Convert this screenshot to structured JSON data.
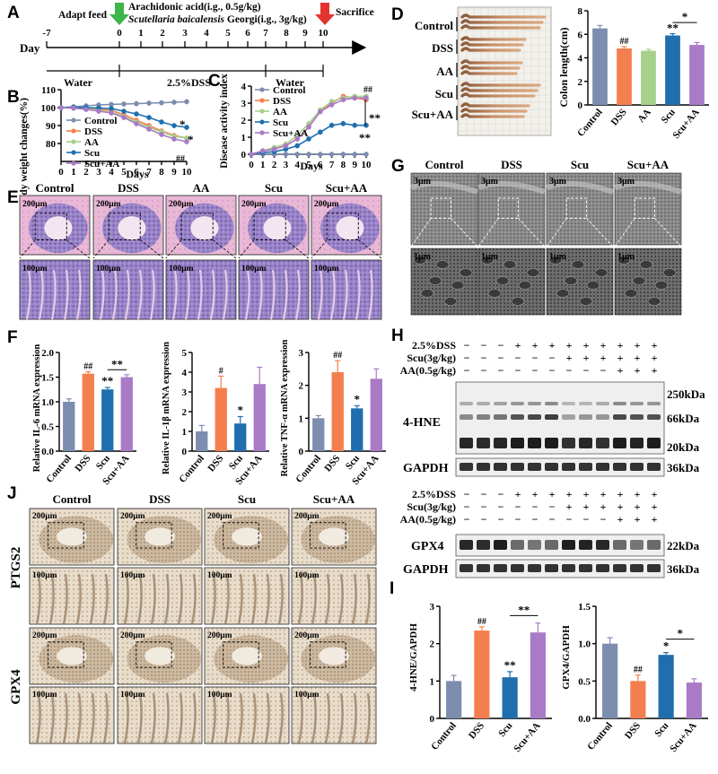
{
  "colors": {
    "control": "#7D8DAF",
    "dss": "#F47F4E",
    "aa": "#A6D08C",
    "scu": "#1F6FAE",
    "scu_aa": "#A97BC7",
    "ink": "#000000"
  },
  "panelA": {
    "letter": "A",
    "day_label": "Day",
    "days": [
      "-7",
      "0",
      "1",
      "2",
      "3",
      "4",
      "5",
      "6",
      "7",
      "8",
      "9",
      "10"
    ],
    "adapt": "Adapt feed",
    "arach": "Arachidonic acid(i.g., 0.5g/kg)",
    "scut_italic": "Scutellaria baicalensis",
    "scut_rest": " Georgi(i.g., 3g/kg)",
    "sacrifice": "Sacrifice",
    "water1": "Water",
    "dss": "2.5%DSS",
    "water2": "Water"
  },
  "panelB": {
    "letter": "B",
    "ylabel": "Body weight changes(%)",
    "xlabel": "Days",
    "sig_star1": "*",
    "sig_star2": "*",
    "sig_hash": "##"
  },
  "panelC": {
    "letter": "C",
    "ylabel": "Disease activity index",
    "xlabel": "Days",
    "sig_hash": "##",
    "sig_dstar1": "**",
    "sig_dstar2": "**"
  },
  "panelD": {
    "letter": "D",
    "groups": [
      "Control",
      "DSS",
      "AA",
      "Scu",
      "Scu+AA"
    ],
    "ylabel": "Colon length(cm)",
    "sig_hash": "##",
    "sig_dstar": "**",
    "sig_star": "*"
  },
  "panelE": {
    "letter": "E",
    "groups": [
      "Control",
      "DSS",
      "AA",
      "Scu",
      "Scu+AA"
    ],
    "scale_top": "200μm",
    "scale_bottom": "100μm"
  },
  "panelF": {
    "letter": "F",
    "il6_label": "Relative IL-6 mRNA expression",
    "il1b_label": "Relative IL-1β mRNA expression",
    "tnf_label": "Relative TNF-α mRNA expression",
    "groups": [
      "Control",
      "DSS",
      "Scu",
      "Scu+AA"
    ],
    "il6_sig": [
      "",
      "##",
      "**",
      ""
    ],
    "il6_bracket": "**",
    "il1b_sig": [
      "",
      "#",
      "*",
      ""
    ],
    "tnf_sig": [
      "",
      "##",
      "*",
      ""
    ]
  },
  "panelG": {
    "letter": "G",
    "groups": [
      "Control",
      "DSS",
      "Scu",
      "Scu+AA"
    ],
    "scale_top": "3μm",
    "scale_bottom": "1μm"
  },
  "panelH": {
    "letter": "H",
    "row_labels": [
      "2.5%DSS",
      "Scu(3g/kg)",
      "AA(0.5g/kg)"
    ],
    "row_signs": [
      [
        "−",
        "−",
        "−",
        "+",
        "+",
        "+",
        "+",
        "+",
        "+",
        "+",
        "+",
        "+"
      ],
      [
        "−",
        "−",
        "−",
        "−",
        "−",
        "−",
        "+",
        "+",
        "+",
        "+",
        "+",
        "+"
      ],
      [
        "−",
        "−",
        "−",
        "−",
        "−",
        "−",
        "−",
        "−",
        "−",
        "+",
        "+",
        "+"
      ]
    ],
    "blot1_label": "4-HNE",
    "gapdh_label": "GAPDH",
    "kda_250": "250kDa",
    "kda_66": "66kDa",
    "kda_20": "20kDa",
    "kda_36": "36kDa",
    "blot2_label": "GPX4",
    "kda_22": "22kDa"
  },
  "panelI": {
    "letter": "I",
    "groups": [
      "Control",
      "DSS",
      "Scu",
      "Scu+AA"
    ],
    "hne_label": "4-HNE/GAPDH",
    "gpx4_label": "GPX4/GAPDH",
    "hne_sig": [
      "",
      "##",
      "**",
      ""
    ],
    "hne_bracket": "**",
    "gpx4_sig": [
      "",
      "##",
      "*",
      ""
    ],
    "gpx4_bracket": "*"
  },
  "panelJ": {
    "letter": "J",
    "groups": [
      "Control",
      "DSS",
      "Scu",
      "Scu+AA"
    ],
    "rows": [
      "PTGS2",
      "GPX4"
    ],
    "scale_top": "200μm",
    "scale_bottom": "100μm"
  },
  "chart_data": [
    {
      "id": "B",
      "type": "line",
      "ylabel": "Body weight changes(%)",
      "xlabel": "Days",
      "x": [
        0,
        1,
        2,
        3,
        4,
        5,
        6,
        7,
        8,
        9,
        10
      ],
      "xlim": [
        0,
        10
      ],
      "ylim": [
        70,
        110
      ],
      "yticks": [
        80,
        90,
        100,
        110
      ],
      "legend": "left",
      "series": [
        {
          "name": "Control",
          "color_key": "control",
          "values": [
            100,
            100.5,
            101,
            101.5,
            101.8,
            102,
            102.2,
            102.5,
            102.7,
            103,
            103.3
          ]
        },
        {
          "name": "DSS",
          "color_key": "dss",
          "values": [
            100,
            100,
            99.5,
            99,
            98.5,
            96,
            93,
            90,
            87,
            84.5,
            83
          ]
        },
        {
          "name": "AA",
          "color_key": "aa",
          "values": [
            100,
            99.8,
            99.3,
            98.5,
            97.5,
            95,
            92,
            89,
            86.5,
            84,
            83
          ]
        },
        {
          "name": "Scu",
          "color_key": "scu",
          "values": [
            100,
            100.2,
            100,
            99.8,
            99.5,
            98,
            96.5,
            94.5,
            92,
            90,
            89
          ]
        },
        {
          "name": "Scu+AA",
          "color_key": "scu_aa",
          "values": [
            100,
            99.7,
            99,
            98,
            97,
            94.5,
            91,
            88,
            85,
            82.5,
            81
          ]
        }
      ]
    },
    {
      "id": "C",
      "type": "line",
      "ylabel": "Disease activity index",
      "xlabel": "Days",
      "x": [
        0,
        1,
        2,
        3,
        4,
        5,
        6,
        7,
        8,
        9,
        10
      ],
      "xlim": [
        0,
        10
      ],
      "ylim": [
        0,
        4
      ],
      "yticks": [
        0,
        1,
        2,
        3,
        4
      ],
      "legend": "top-left",
      "series": [
        {
          "name": "Control",
          "color_key": "control",
          "values": [
            0,
            0,
            0,
            0,
            0,
            0,
            0,
            0,
            0,
            0,
            0
          ]
        },
        {
          "name": "DSS",
          "color_key": "dss",
          "values": [
            0,
            0.2,
            0.3,
            0.5,
            0.9,
            1.6,
            2.5,
            3.0,
            3.4,
            3.3,
            3.2
          ]
        },
        {
          "name": "AA",
          "color_key": "aa",
          "values": [
            0,
            0.2,
            0.4,
            0.6,
            1.1,
            1.8,
            2.6,
            3.1,
            3.3,
            3.4,
            3.4
          ]
        },
        {
          "name": "Scu",
          "color_key": "scu",
          "values": [
            0,
            0.1,
            0.15,
            0.3,
            0.5,
            0.9,
            1.3,
            1.7,
            1.8,
            1.7,
            1.7
          ]
        },
        {
          "name": "Scu+AA",
          "color_key": "scu_aa",
          "values": [
            0,
            0.2,
            0.3,
            0.5,
            0.9,
            1.6,
            2.5,
            2.9,
            3.2,
            3.3,
            3.3
          ]
        }
      ]
    },
    {
      "id": "D",
      "type": "bar",
      "ylabel": "Colon length(cm)",
      "categories": [
        "Control",
        "DSS",
        "AA",
        "Scu",
        "Scu+AA"
      ],
      "values": [
        6.5,
        4.8,
        4.6,
        5.9,
        5.1
      ],
      "errors": [
        0.25,
        0.15,
        0.12,
        0.15,
        0.2
      ],
      "ylim": [
        0,
        8
      ],
      "yticks": [
        0,
        2,
        4,
        6,
        8
      ]
    },
    {
      "id": "F1",
      "type": "bar",
      "ylabel": "Relative IL-6 mRNA expression",
      "categories": [
        "Control",
        "DSS",
        "Scu",
        "Scu+AA"
      ],
      "values": [
        1.0,
        1.57,
        1.25,
        1.5
      ],
      "errors": [
        0.06,
        0.04,
        0.04,
        0.05
      ],
      "ylim": [
        0,
        2.0
      ],
      "yticks": [
        0.0,
        0.5,
        1.0,
        1.5,
        2.0
      ]
    },
    {
      "id": "F2",
      "type": "bar",
      "ylabel": "Relative IL-1β mRNA expression",
      "categories": [
        "Control",
        "DSS",
        "Scu",
        "Scu+AA"
      ],
      "values": [
        1.0,
        3.2,
        1.4,
        3.4
      ],
      "errors": [
        0.3,
        0.6,
        0.35,
        0.85
      ],
      "ylim": [
        0,
        5
      ],
      "yticks": [
        0,
        1,
        2,
        3,
        4,
        5
      ]
    },
    {
      "id": "F3",
      "type": "bar",
      "ylabel": "Relative TNF-α mRNA expression",
      "categories": [
        "Control",
        "DSS",
        "Scu",
        "Scu+AA"
      ],
      "values": [
        1.0,
        2.4,
        1.3,
        2.2
      ],
      "errors": [
        0.08,
        0.35,
        0.08,
        0.3
      ],
      "ylim": [
        0,
        3
      ],
      "yticks": [
        0,
        1,
        2,
        3
      ]
    },
    {
      "id": "I1",
      "type": "bar",
      "ylabel": "4-HNE/GAPDH",
      "categories": [
        "Control",
        "DSS",
        "Scu",
        "Scu+AA"
      ],
      "values": [
        1.0,
        2.35,
        1.1,
        2.3
      ],
      "errors": [
        0.15,
        0.1,
        0.15,
        0.25
      ],
      "ylim": [
        0,
        3
      ],
      "yticks": [
        0,
        1,
        2,
        3
      ]
    },
    {
      "id": "I2",
      "type": "bar",
      "ylabel": "GPX4/GAPDH",
      "categories": [
        "Control",
        "DSS",
        "Scu",
        "Scu+AA"
      ],
      "values": [
        1.0,
        0.5,
        0.85,
        0.48
      ],
      "errors": [
        0.08,
        0.08,
        0.03,
        0.05
      ],
      "ylim": [
        0,
        1.5
      ],
      "yticks": [
        0.0,
        0.5,
        1.0,
        1.5
      ]
    }
  ]
}
